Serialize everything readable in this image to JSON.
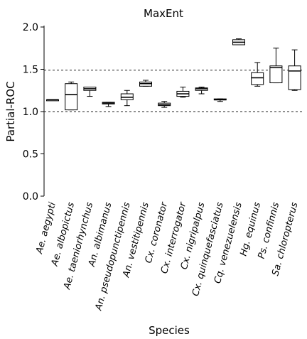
{
  "chart_data": {
    "type": "box",
    "title": "MaxEnt",
    "xlabel": "Species",
    "ylabel": "Partial-ROC",
    "ylim": [
      0,
      2.0
    ],
    "yticks": [
      0.0,
      0.5,
      1.0,
      1.5,
      2.0
    ],
    "ytick_labels": [
      "0.0",
      "0.5",
      "1.0",
      "1.5",
      "2.0"
    ],
    "reference_lines": [
      1.0,
      1.49
    ],
    "categories": [
      "Ae. aegypti",
      "Ae. albopictus",
      "Ae. taeniorhynchus",
      "An. albimanus",
      "An. pseudopunctipennis",
      "An. vestitipennis",
      "Cx. coronator",
      "Cx. interrogator",
      "Cx. nigripalpus",
      "Cx. quinquefasciatus",
      "Cq. venezuelensis",
      "Hg. equinus",
      "Ps. confinnis",
      "Sa. chloropterus"
    ],
    "boxes": [
      {
        "min": 1.14,
        "q1": 1.14,
        "median": 1.14,
        "q3": 1.14,
        "max": 1.14
      },
      {
        "min": 1.02,
        "q1": 1.02,
        "median": 1.2,
        "q3": 1.33,
        "max": 1.35
      },
      {
        "min": 1.18,
        "q1": 1.25,
        "median": 1.27,
        "q3": 1.29,
        "max": 1.29
      },
      {
        "min": 1.06,
        "q1": 1.09,
        "median": 1.1,
        "q3": 1.11,
        "max": 1.11
      },
      {
        "min": 1.07,
        "q1": 1.14,
        "median": 1.17,
        "q3": 1.21,
        "max": 1.25
      },
      {
        "min": 1.3,
        "q1": 1.3,
        "median": 1.33,
        "q3": 1.35,
        "max": 1.37
      },
      {
        "min": 1.05,
        "q1": 1.07,
        "median": 1.08,
        "q3": 1.1,
        "max": 1.12
      },
      {
        "min": 1.17,
        "q1": 1.18,
        "median": 1.21,
        "q3": 1.24,
        "max": 1.29
      },
      {
        "min": 1.21,
        "q1": 1.25,
        "median": 1.27,
        "q3": 1.28,
        "max": 1.29
      },
      {
        "min": 1.12,
        "q1": 1.14,
        "median": 1.14,
        "q3": 1.15,
        "max": 1.15
      },
      {
        "min": 1.79,
        "q1": 1.79,
        "median": 1.82,
        "q3": 1.85,
        "max": 1.86
      },
      {
        "min": 1.3,
        "q1": 1.32,
        "median": 1.4,
        "q3": 1.46,
        "max": 1.58
      },
      {
        "min": 1.34,
        "q1": 1.34,
        "median": 1.52,
        "q3": 1.54,
        "max": 1.75
      },
      {
        "min": 1.25,
        "q1": 1.26,
        "median": 1.48,
        "q3": 1.54,
        "max": 1.73
      }
    ],
    "grid": false,
    "legend": "none"
  }
}
